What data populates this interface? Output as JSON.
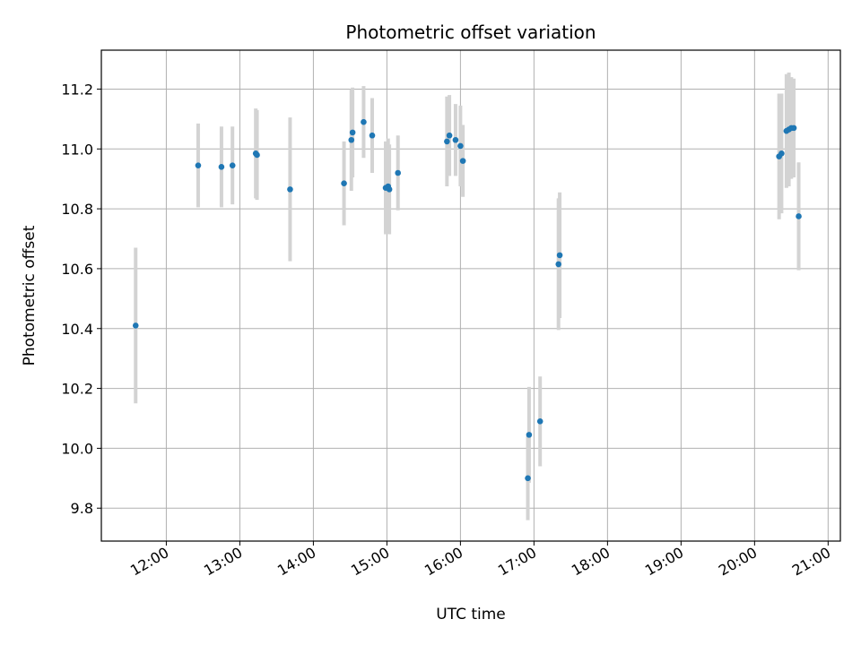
{
  "chart_data": {
    "type": "scatter",
    "title": "Photometric offset variation",
    "xlabel": "UTC time",
    "ylabel": "Photometric offset",
    "x_tick_labels": [
      "12:00",
      "13:00",
      "14:00",
      "15:00",
      "16:00",
      "17:00",
      "18:00",
      "19:00",
      "20:00",
      "21:00"
    ],
    "y_tick_labels": [
      "9.8",
      "10.0",
      "10.2",
      "10.4",
      "10.6",
      "10.8",
      "11.0",
      "11.2"
    ],
    "grid": true,
    "xlim": [
      "11:07",
      "21:10"
    ],
    "ylim": [
      9.69,
      11.33
    ],
    "colors": {
      "point": "#1f77b4",
      "errorbar": "#d3d3d3",
      "grid": "#b0b0b0"
    },
    "points": [
      {
        "x": "11:35",
        "y": 10.41,
        "err": 0.26
      },
      {
        "x": "12:26",
        "y": 10.945,
        "err": 0.14
      },
      {
        "x": "12:45",
        "y": 10.94,
        "err": 0.135
      },
      {
        "x": "12:54",
        "y": 10.945,
        "err": 0.13
      },
      {
        "x": "13:13",
        "y": 10.985,
        "err": 0.15
      },
      {
        "x": "13:14",
        "y": 10.98,
        "err": 0.15
      },
      {
        "x": "13:41",
        "y": 10.865,
        "err": 0.24
      },
      {
        "x": "14:25",
        "y": 10.885,
        "err": 0.14
      },
      {
        "x": "14:31",
        "y": 11.03,
        "err": 0.17
      },
      {
        "x": "14:32",
        "y": 11.055,
        "err": 0.15
      },
      {
        "x": "14:41",
        "y": 11.09,
        "err": 0.12
      },
      {
        "x": "14:48",
        "y": 11.045,
        "err": 0.125
      },
      {
        "x": "14:59",
        "y": 10.87,
        "err": 0.155
      },
      {
        "x": "15:01",
        "y": 10.875,
        "err": 0.16
      },
      {
        "x": "15:02",
        "y": 10.865,
        "err": 0.15
      },
      {
        "x": "15:09",
        "y": 10.92,
        "err": 0.125
      },
      {
        "x": "15:49",
        "y": 11.025,
        "err": 0.15
      },
      {
        "x": "15:51",
        "y": 11.045,
        "err": 0.135
      },
      {
        "x": "15:56",
        "y": 11.03,
        "err": 0.12
      },
      {
        "x": "16:00",
        "y": 11.01,
        "err": 0.135
      },
      {
        "x": "16:02",
        "y": 10.96,
        "err": 0.12
      },
      {
        "x": "16:55",
        "y": 9.9,
        "err": 0.14
      },
      {
        "x": "16:56",
        "y": 10.045,
        "err": 0.16
      },
      {
        "x": "17:05",
        "y": 10.09,
        "err": 0.15
      },
      {
        "x": "17:20",
        "y": 10.615,
        "err": 0.22
      },
      {
        "x": "17:21",
        "y": 10.645,
        "err": 0.21
      },
      {
        "x": "20:20",
        "y": 10.975,
        "err": 0.21
      },
      {
        "x": "20:22",
        "y": 10.985,
        "err": 0.2
      },
      {
        "x": "20:26",
        "y": 11.06,
        "err": 0.19
      },
      {
        "x": "20:28",
        "y": 11.065,
        "err": 0.19
      },
      {
        "x": "20:30",
        "y": 11.07,
        "err": 0.17
      },
      {
        "x": "20:32",
        "y": 11.07,
        "err": 0.165
      },
      {
        "x": "20:36",
        "y": 10.775,
        "err": 0.18
      }
    ]
  }
}
